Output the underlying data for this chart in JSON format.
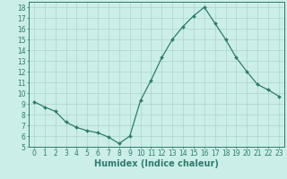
{
  "x": [
    0,
    1,
    2,
    3,
    4,
    5,
    6,
    7,
    8,
    9,
    10,
    11,
    12,
    13,
    14,
    15,
    16,
    17,
    18,
    19,
    20,
    21,
    22,
    23
  ],
  "y": [
    9.2,
    8.7,
    8.3,
    7.3,
    6.8,
    6.5,
    6.3,
    5.9,
    5.3,
    6.0,
    9.3,
    11.2,
    13.3,
    15.0,
    16.2,
    17.2,
    18.0,
    16.5,
    15.0,
    13.3,
    12.0,
    10.8,
    10.3,
    9.7
  ],
  "line_color": "#2e7d6e",
  "marker": "D",
  "markersize": 2.0,
  "linewidth": 0.9,
  "bg_color": "#cceee8",
  "grid_color": "#aad4cc",
  "xlabel": "Humidex (Indice chaleur)",
  "xlabel_fontsize": 7,
  "xlim": [
    -0.5,
    23.5
  ],
  "ylim": [
    5,
    18.5
  ],
  "yticks": [
    5,
    6,
    7,
    8,
    9,
    10,
    11,
    12,
    13,
    14,
    15,
    16,
    17,
    18
  ],
  "xticks": [
    0,
    1,
    2,
    3,
    4,
    5,
    6,
    7,
    8,
    9,
    10,
    11,
    12,
    13,
    14,
    15,
    16,
    17,
    18,
    19,
    20,
    21,
    22,
    23
  ],
  "tick_fontsize": 5.5
}
